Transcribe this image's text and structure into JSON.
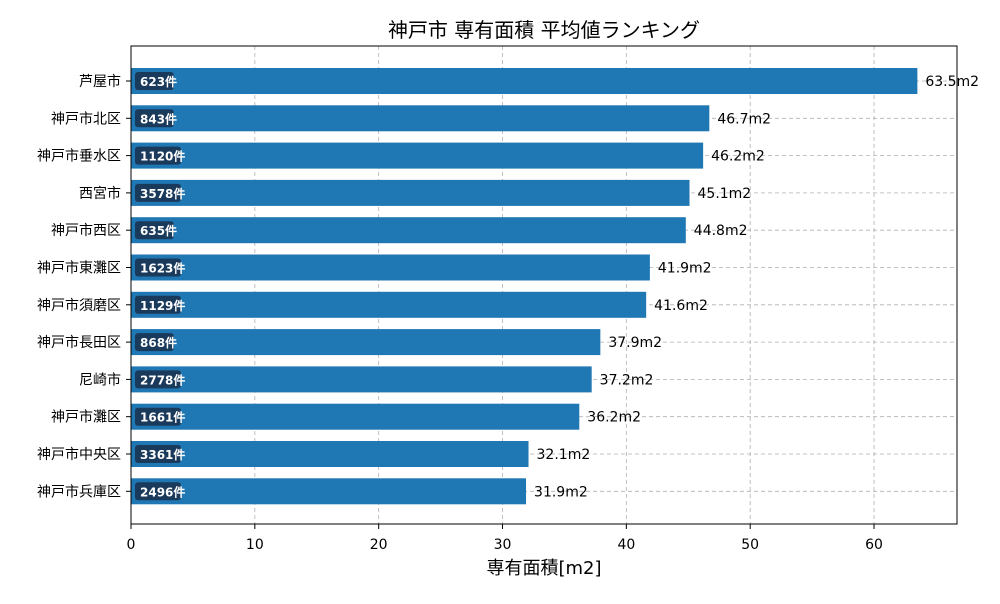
{
  "chart_data": {
    "type": "bar",
    "orientation": "horizontal",
    "title": "神戸市 専有面積 平均値ランキング",
    "xlabel": "専有面積[m2]",
    "ylabel": "",
    "xlim": [
      0,
      66.7
    ],
    "x_ticks": [
      "0",
      "10",
      "20",
      "30",
      "40",
      "50",
      "60"
    ],
    "grid": true,
    "bar_color": "#1f77b4",
    "count_badge_color": "#1a3a5c",
    "categories": [
      "芦屋市",
      "神戸市北区",
      "神戸市垂水区",
      "西宮市",
      "神戸市西区",
      "神戸市東灘区",
      "神戸市須磨区",
      "神戸市長田区",
      "尼崎市",
      "神戸市灘区",
      "神戸市中央区",
      "神戸市兵庫区"
    ],
    "values": [
      63.5,
      46.7,
      46.2,
      45.1,
      44.8,
      41.9,
      41.6,
      37.9,
      37.2,
      36.2,
      32.1,
      31.9
    ],
    "value_labels": [
      "63.5m2",
      "46.7m2",
      "46.2m2",
      "45.1m2",
      "44.8m2",
      "41.9m2",
      "41.6m2",
      "37.9m2",
      "37.2m2",
      "36.2m2",
      "32.1m2",
      "31.9m2"
    ],
    "count_labels": [
      "623件",
      "843件",
      "1120件",
      "3578件",
      "635件",
      "1623件",
      "1129件",
      "868件",
      "2778件",
      "1661件",
      "3361件",
      "2496件"
    ]
  }
}
